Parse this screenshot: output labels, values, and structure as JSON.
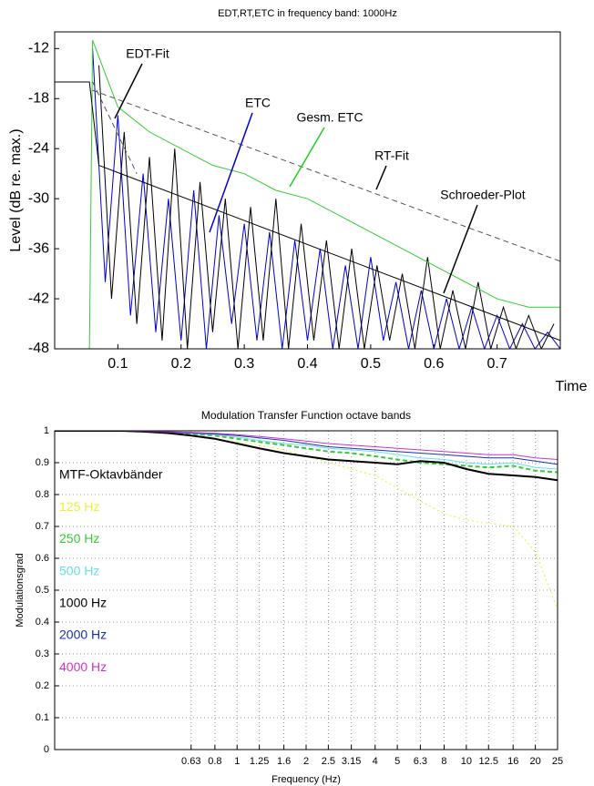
{
  "chart_data": [
    {
      "type": "line",
      "title": "EDT,RT,ETC in frequency band: 1000Hz",
      "y_label": "Level (dB re. max.)",
      "x_label": "Time",
      "xlim": [
        0,
        0.8
      ],
      "xticks": [
        0.1,
        0.2,
        0.3,
        0.4,
        0.5,
        0.6,
        0.7
      ],
      "ylim": [
        -48,
        -10
      ],
      "yticks": [
        -12,
        -18,
        -24,
        -30,
        -36,
        -42,
        -48
      ],
      "grid": false,
      "series": [
        {
          "name": "ETC",
          "color": "#0000cc",
          "x": [
            0.06,
            0.08,
            0.1,
            0.12,
            0.14,
            0.16,
            0.18,
            0.2,
            0.22,
            0.24,
            0.26,
            0.28,
            0.3,
            0.32,
            0.34,
            0.36,
            0.38,
            0.4,
            0.42,
            0.44,
            0.46,
            0.48,
            0.5,
            0.52,
            0.54,
            0.56,
            0.58,
            0.6,
            0.62,
            0.64,
            0.66,
            0.68,
            0.7,
            0.72,
            0.74,
            0.76,
            0.78,
            0.8
          ],
          "values": [
            -12,
            -40,
            -20,
            -44,
            -27,
            -46,
            -30,
            -47,
            -29,
            -48,
            -32,
            -45,
            -33,
            -47,
            -34,
            -48,
            -35,
            -47,
            -36,
            -48,
            -38,
            -48,
            -37,
            -47,
            -40,
            -48,
            -41,
            -48,
            -42,
            -48,
            -43,
            -48,
            -44,
            -48,
            -45,
            -48,
            -46,
            -48
          ]
        },
        {
          "color": "#000000",
          "x": [
            0.07,
            0.09,
            0.11,
            0.13,
            0.15,
            0.17,
            0.19,
            0.21,
            0.23,
            0.25,
            0.27,
            0.29,
            0.31,
            0.33,
            0.35,
            0.37,
            0.39,
            0.41,
            0.43,
            0.45,
            0.47,
            0.49,
            0.51,
            0.53,
            0.55,
            0.57,
            0.59,
            0.61,
            0.63,
            0.65,
            0.67,
            0.69,
            0.71,
            0.73,
            0.75,
            0.77,
            0.79
          ],
          "values": [
            -14,
            -42,
            -22,
            -45,
            -25,
            -47,
            -24,
            -48,
            -28,
            -46,
            -30,
            -48,
            -31,
            -47,
            -30,
            -48,
            -33,
            -47,
            -35,
            -48,
            -36,
            -48,
            -38,
            -47,
            -39,
            -48,
            -37,
            -48,
            -41,
            -48,
            -40,
            -48,
            -43,
            -48,
            -44,
            -48,
            -45
          ]
        },
        {
          "name": "Gesm. ETC",
          "color": "#33cc33",
          "x": [
            0.055,
            0.06,
            0.1,
            0.15,
            0.2,
            0.25,
            0.3,
            0.35,
            0.4,
            0.45,
            0.5,
            0.55,
            0.6,
            0.65,
            0.7,
            0.75,
            0.8
          ],
          "values": [
            -48,
            -11,
            -19,
            -22,
            -24,
            -26,
            -27,
            -29,
            -30,
            -32,
            -34,
            -36,
            -38,
            -40,
            -42,
            -43,
            -43
          ]
        },
        {
          "name": "RT-Fit",
          "color": "#555555",
          "dash": true,
          "x": [
            0.06,
            0.8
          ],
          "values": [
            -17,
            -37.5
          ]
        },
        {
          "name": "EDT-Fit",
          "color": "#555555",
          "dash": true,
          "x": [
            0.06,
            0.13
          ],
          "values": [
            -16,
            -27
          ]
        },
        {
          "name": "Schroeder-Plot",
          "color": "#000000",
          "x": [
            0,
            0.055,
            0.07,
            0.8
          ],
          "values": [
            -16,
            -16,
            -26,
            -47
          ]
        }
      ]
    },
    {
      "type": "line",
      "title": "Modulation Transfer Function octave bands",
      "y_label": "Modulationsgrad",
      "x_label": "Frequency (Hz)",
      "xscale": "log",
      "xlim": [
        0.16,
        25
      ],
      "xticks": [
        0.63,
        0.8,
        1,
        1.25,
        1.6,
        2,
        2.5,
        3.15,
        4,
        5,
        6.3,
        8,
        10,
        12.5,
        16,
        20,
        25
      ],
      "ylim": [
        0,
        1
      ],
      "yticks": [
        0,
        0.1,
        0.2,
        0.3,
        0.4,
        0.5,
        0.6,
        0.7,
        0.8,
        0.9,
        1
      ],
      "grid": true,
      "legend_title": "MTF-Oktavbänder",
      "x": [
        0.16,
        0.2,
        0.25,
        0.315,
        0.4,
        0.5,
        0.63,
        0.8,
        1,
        1.25,
        1.6,
        2,
        2.5,
        3.15,
        4,
        5,
        6.3,
        8,
        10,
        12.5,
        16,
        20,
        25
      ],
      "series": [
        {
          "name": "125 Hz",
          "color": "#eeee33",
          "values": [
            1,
            1,
            1,
            1,
            0.995,
            0.99,
            0.985,
            0.975,
            0.965,
            0.955,
            0.94,
            0.92,
            0.9,
            0.88,
            0.86,
            0.82,
            0.78,
            0.74,
            0.72,
            0.71,
            0.7,
            0.62,
            0.44
          ]
        },
        {
          "name": "250 Hz",
          "color": "#33cc33",
          "values": [
            1,
            1,
            1,
            1,
            0.998,
            0.995,
            0.99,
            0.985,
            0.975,
            0.965,
            0.955,
            0.945,
            0.935,
            0.93,
            0.92,
            0.91,
            0.9,
            0.895,
            0.89,
            0.885,
            0.89,
            0.875,
            0.87
          ]
        },
        {
          "name": "500 Hz",
          "color": "#66e0ee",
          "values": [
            1,
            1,
            1,
            1,
            0.998,
            0.996,
            0.992,
            0.988,
            0.98,
            0.97,
            0.96,
            0.955,
            0.945,
            0.94,
            0.935,
            0.925,
            0.915,
            0.91,
            0.9,
            0.895,
            0.9,
            0.885,
            0.88
          ]
        },
        {
          "name": "1000 Hz",
          "color": "#000000",
          "values": [
            1,
            1,
            1,
            1,
            0.997,
            0.993,
            0.985,
            0.975,
            0.96,
            0.945,
            0.93,
            0.92,
            0.91,
            0.905,
            0.9,
            0.895,
            0.905,
            0.9,
            0.88,
            0.865,
            0.86,
            0.855,
            0.845
          ]
        },
        {
          "name": "2000 Hz",
          "color": "#1a2fb0",
          "values": [
            1,
            1,
            1,
            1,
            0.998,
            0.996,
            0.993,
            0.99,
            0.985,
            0.978,
            0.97,
            0.96,
            0.95,
            0.945,
            0.94,
            0.935,
            0.93,
            0.925,
            0.92,
            0.915,
            0.915,
            0.905,
            0.895
          ]
        },
        {
          "name": "4000 Hz",
          "color": "#cc33cc",
          "values": [
            1,
            1,
            1,
            1,
            0.999,
            0.997,
            0.995,
            0.992,
            0.988,
            0.982,
            0.975,
            0.968,
            0.96,
            0.955,
            0.95,
            0.945,
            0.94,
            0.935,
            0.93,
            0.925,
            0.925,
            0.915,
            0.91
          ]
        }
      ]
    }
  ]
}
